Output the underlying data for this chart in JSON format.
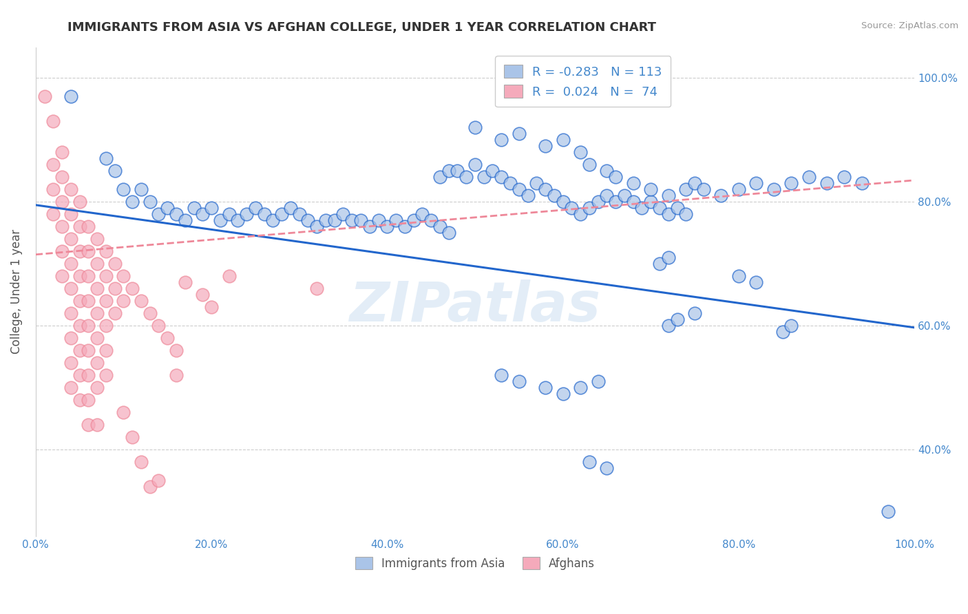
{
  "title": "IMMIGRANTS FROM ASIA VS AFGHAN COLLEGE, UNDER 1 YEAR CORRELATION CHART",
  "source": "Source: ZipAtlas.com",
  "ylabel": "College, Under 1 year",
  "xmin": 0.0,
  "xmax": 1.0,
  "ymin": 0.26,
  "ymax": 1.05,
  "watermark": "ZIPatlas",
  "legend_label1": "Immigrants from Asia",
  "legend_label2": "Afghans",
  "blue_color": "#aac4e8",
  "pink_color": "#f5aabb",
  "blue_line_color": "#2266cc",
  "pink_line_color": "#ee8899",
  "title_color": "#333333",
  "axis_label_color": "#4488cc",
  "background_color": "#ffffff",
  "grid_color": "#cccccc",
  "blue_scatter": [
    [
      0.04,
      0.97
    ],
    [
      0.08,
      0.87
    ],
    [
      0.09,
      0.85
    ],
    [
      0.1,
      0.82
    ],
    [
      0.11,
      0.8
    ],
    [
      0.12,
      0.82
    ],
    [
      0.13,
      0.8
    ],
    [
      0.14,
      0.78
    ],
    [
      0.15,
      0.79
    ],
    [
      0.16,
      0.78
    ],
    [
      0.17,
      0.77
    ],
    [
      0.18,
      0.79
    ],
    [
      0.19,
      0.78
    ],
    [
      0.2,
      0.79
    ],
    [
      0.21,
      0.77
    ],
    [
      0.22,
      0.78
    ],
    [
      0.23,
      0.77
    ],
    [
      0.24,
      0.78
    ],
    [
      0.25,
      0.79
    ],
    [
      0.26,
      0.78
    ],
    [
      0.27,
      0.77
    ],
    [
      0.28,
      0.78
    ],
    [
      0.29,
      0.79
    ],
    [
      0.3,
      0.78
    ],
    [
      0.31,
      0.77
    ],
    [
      0.32,
      0.76
    ],
    [
      0.33,
      0.77
    ],
    [
      0.34,
      0.77
    ],
    [
      0.35,
      0.78
    ],
    [
      0.36,
      0.77
    ],
    [
      0.37,
      0.77
    ],
    [
      0.38,
      0.76
    ],
    [
      0.39,
      0.77
    ],
    [
      0.4,
      0.76
    ],
    [
      0.41,
      0.77
    ],
    [
      0.42,
      0.76
    ],
    [
      0.43,
      0.77
    ],
    [
      0.44,
      0.78
    ],
    [
      0.45,
      0.77
    ],
    [
      0.46,
      0.76
    ],
    [
      0.47,
      0.75
    ],
    [
      0.46,
      0.84
    ],
    [
      0.47,
      0.85
    ],
    [
      0.48,
      0.85
    ],
    [
      0.49,
      0.84
    ],
    [
      0.5,
      0.86
    ],
    [
      0.51,
      0.84
    ],
    [
      0.52,
      0.85
    ],
    [
      0.53,
      0.84
    ],
    [
      0.54,
      0.83
    ],
    [
      0.55,
      0.82
    ],
    [
      0.56,
      0.81
    ],
    [
      0.57,
      0.83
    ],
    [
      0.58,
      0.82
    ],
    [
      0.59,
      0.81
    ],
    [
      0.6,
      0.8
    ],
    [
      0.61,
      0.79
    ],
    [
      0.62,
      0.78
    ],
    [
      0.63,
      0.79
    ],
    [
      0.64,
      0.8
    ],
    [
      0.65,
      0.81
    ],
    [
      0.66,
      0.8
    ],
    [
      0.67,
      0.81
    ],
    [
      0.68,
      0.8
    ],
    [
      0.69,
      0.79
    ],
    [
      0.7,
      0.8
    ],
    [
      0.71,
      0.79
    ],
    [
      0.72,
      0.78
    ],
    [
      0.73,
      0.79
    ],
    [
      0.74,
      0.78
    ],
    [
      0.5,
      0.92
    ],
    [
      0.53,
      0.9
    ],
    [
      0.55,
      0.91
    ],
    [
      0.58,
      0.89
    ],
    [
      0.6,
      0.9
    ],
    [
      0.62,
      0.88
    ],
    [
      0.63,
      0.86
    ],
    [
      0.65,
      0.85
    ],
    [
      0.66,
      0.84
    ],
    [
      0.68,
      0.83
    ],
    [
      0.7,
      0.82
    ],
    [
      0.72,
      0.81
    ],
    [
      0.74,
      0.82
    ],
    [
      0.75,
      0.83
    ],
    [
      0.76,
      0.82
    ],
    [
      0.78,
      0.81
    ],
    [
      0.8,
      0.82
    ],
    [
      0.82,
      0.83
    ],
    [
      0.84,
      0.82
    ],
    [
      0.86,
      0.83
    ],
    [
      0.88,
      0.84
    ],
    [
      0.9,
      0.83
    ],
    [
      0.92,
      0.84
    ],
    [
      0.94,
      0.83
    ],
    [
      0.71,
      0.7
    ],
    [
      0.72,
      0.71
    ],
    [
      0.8,
      0.68
    ],
    [
      0.82,
      0.67
    ],
    [
      0.72,
      0.6
    ],
    [
      0.73,
      0.61
    ],
    [
      0.75,
      0.62
    ],
    [
      0.85,
      0.59
    ],
    [
      0.86,
      0.6
    ],
    [
      0.53,
      0.52
    ],
    [
      0.55,
      0.51
    ],
    [
      0.58,
      0.5
    ],
    [
      0.6,
      0.49
    ],
    [
      0.62,
      0.5
    ],
    [
      0.64,
      0.51
    ],
    [
      0.63,
      0.38
    ],
    [
      0.65,
      0.37
    ],
    [
      0.97,
      0.3
    ]
  ],
  "pink_scatter": [
    [
      0.01,
      0.97
    ],
    [
      0.02,
      0.93
    ],
    [
      0.02,
      0.86
    ],
    [
      0.02,
      0.82
    ],
    [
      0.02,
      0.78
    ],
    [
      0.03,
      0.88
    ],
    [
      0.03,
      0.84
    ],
    [
      0.03,
      0.8
    ],
    [
      0.03,
      0.76
    ],
    [
      0.03,
      0.72
    ],
    [
      0.03,
      0.68
    ],
    [
      0.04,
      0.82
    ],
    [
      0.04,
      0.78
    ],
    [
      0.04,
      0.74
    ],
    [
      0.04,
      0.7
    ],
    [
      0.04,
      0.66
    ],
    [
      0.04,
      0.62
    ],
    [
      0.04,
      0.58
    ],
    [
      0.04,
      0.54
    ],
    [
      0.04,
      0.5
    ],
    [
      0.05,
      0.8
    ],
    [
      0.05,
      0.76
    ],
    [
      0.05,
      0.72
    ],
    [
      0.05,
      0.68
    ],
    [
      0.05,
      0.64
    ],
    [
      0.05,
      0.6
    ],
    [
      0.05,
      0.56
    ],
    [
      0.05,
      0.52
    ],
    [
      0.05,
      0.48
    ],
    [
      0.06,
      0.76
    ],
    [
      0.06,
      0.72
    ],
    [
      0.06,
      0.68
    ],
    [
      0.06,
      0.64
    ],
    [
      0.06,
      0.6
    ],
    [
      0.06,
      0.56
    ],
    [
      0.06,
      0.52
    ],
    [
      0.06,
      0.48
    ],
    [
      0.06,
      0.44
    ],
    [
      0.07,
      0.74
    ],
    [
      0.07,
      0.7
    ],
    [
      0.07,
      0.66
    ],
    [
      0.07,
      0.62
    ],
    [
      0.07,
      0.58
    ],
    [
      0.07,
      0.54
    ],
    [
      0.07,
      0.5
    ],
    [
      0.07,
      0.44
    ],
    [
      0.08,
      0.72
    ],
    [
      0.08,
      0.68
    ],
    [
      0.08,
      0.64
    ],
    [
      0.08,
      0.6
    ],
    [
      0.08,
      0.56
    ],
    [
      0.08,
      0.52
    ],
    [
      0.09,
      0.7
    ],
    [
      0.09,
      0.66
    ],
    [
      0.09,
      0.62
    ],
    [
      0.1,
      0.68
    ],
    [
      0.1,
      0.64
    ],
    [
      0.11,
      0.66
    ],
    [
      0.12,
      0.64
    ],
    [
      0.13,
      0.62
    ],
    [
      0.14,
      0.6
    ],
    [
      0.15,
      0.58
    ],
    [
      0.16,
      0.56
    ],
    [
      0.16,
      0.52
    ],
    [
      0.17,
      0.67
    ],
    [
      0.19,
      0.65
    ],
    [
      0.2,
      0.63
    ],
    [
      0.1,
      0.46
    ],
    [
      0.11,
      0.42
    ],
    [
      0.12,
      0.38
    ],
    [
      0.13,
      0.34
    ],
    [
      0.14,
      0.35
    ],
    [
      0.22,
      0.68
    ],
    [
      0.32,
      0.66
    ]
  ],
  "blue_trend_x": [
    0.0,
    1.0
  ],
  "blue_trend_y": [
    0.795,
    0.597
  ],
  "pink_trend_x": [
    0.0,
    1.0
  ],
  "pink_trend_y": [
    0.715,
    0.835
  ]
}
